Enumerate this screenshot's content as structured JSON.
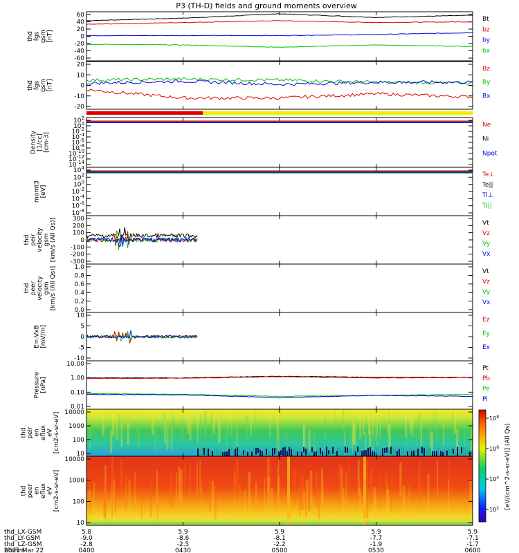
{
  "title": "P3 (TH-D) fields and ground moments overview",
  "date_label": "2021 Mar 22",
  "time_axis": {
    "ticks": [
      "0400",
      "0430",
      "0500",
      "0530",
      "0600"
    ],
    "rows": [
      {
        "label": "thd_LX-GSM",
        "values": [
          "5.8",
          "5.9",
          "5.9",
          "5.9",
          "5.9"
        ]
      },
      {
        "label": "thd_LY-GSM",
        "values": [
          "-9.0",
          "-8.6",
          "-8.1",
          "-7.7",
          "-7.1"
        ]
      },
      {
        "label": "thd_LZ-GSM",
        "values": [
          "-2.8",
          "-2.5",
          "-2.2",
          "-1.9",
          "-1.7"
        ]
      },
      {
        "label": "hhmm",
        "values": []
      }
    ]
  },
  "colorbar_label": "[eV/(cm^2-s-sr-eV)] (All Qs)",
  "colorbar_ticks": [
    "10^8",
    "10^6",
    "10^4",
    "10^2"
  ],
  "chart_data": [
    {
      "type": "line",
      "ylabel": [
        "thd",
        "fgs",
        "gsm",
        "[nT]"
      ],
      "yticks": [
        "60",
        "40",
        "20",
        "0",
        "-20",
        "-40",
        "-60"
      ],
      "ylim": [
        -60,
        65
      ],
      "x": [
        "0400",
        "0430",
        "0500",
        "0530",
        "0600"
      ],
      "series": [
        {
          "name": "Bt",
          "color": "#000000",
          "values": [
            43,
            50,
            62,
            52,
            58
          ]
        },
        {
          "name": "bz",
          "color": "#e00000",
          "values": [
            33,
            38,
            43,
            38,
            40
          ]
        },
        {
          "name": "by",
          "color": "#0000e0",
          "values": [
            2,
            2,
            2,
            5,
            10
          ]
        },
        {
          "name": "bx",
          "color": "#00c000",
          "values": [
            -22,
            -24,
            -30,
            -24,
            -28
          ]
        }
      ]
    },
    {
      "type": "line",
      "ylabel": [
        "thd",
        "fgs",
        "gsm",
        "[nT]"
      ],
      "yticks": [
        "20",
        "10",
        "0",
        "-10",
        "-20"
      ],
      "ylim": [
        -25,
        20
      ],
      "x": [
        "0400",
        "0430",
        "0500",
        "0530",
        "0600"
      ],
      "series": [
        {
          "name": "Bz",
          "color": "#e00000",
          "values": [
            -4,
            -12,
            -12,
            -8,
            -11
          ]
        },
        {
          "name": "By",
          "color": "#00c000",
          "values": [
            5,
            6,
            5,
            3,
            2
          ]
        },
        {
          "name": "Bx",
          "color": "#0000e0",
          "values": [
            2,
            4,
            1,
            3,
            3
          ]
        }
      ]
    },
    {
      "type": "line",
      "ylabel": [
        "Density",
        "[1/cc]",
        "[cm-3]"
      ],
      "yticks": [
        "10^2",
        "10^0",
        "10^-2",
        "10^-4",
        "10^-6",
        "10^-8",
        "10^-10",
        "10^-12",
        "10^-14"
      ],
      "series_labels": [
        {
          "name": "Ne",
          "color": "#e00000"
        },
        {
          "name": "Ni",
          "color": "#000000"
        },
        {
          "name": "Npot",
          "color": "#0000e0"
        }
      ]
    },
    {
      "type": "line",
      "ylabel": [
        "momt3",
        "[eV]"
      ],
      "yticks": [
        "10^4",
        "10^2",
        "10^0",
        "10^-2",
        "10^-4",
        "10^-6",
        "10^-8"
      ],
      "series_labels": [
        {
          "name": "Te⊥",
          "color": "#e00000"
        },
        {
          "name": "Te||",
          "color": "#000000"
        },
        {
          "name": "Ti⊥",
          "color": "#0000e0"
        },
        {
          "name": "Ti||",
          "color": "#00c000"
        }
      ]
    },
    {
      "type": "line",
      "ylabel": [
        "thd",
        "peir",
        "velocity",
        "gsm",
        "[km/s (All Qs)]"
      ],
      "yticks": [
        "300",
        "200",
        "100",
        "0",
        "-100",
        "-200",
        "-300"
      ],
      "series_labels": [
        {
          "name": "Vt",
          "color": "#000000"
        },
        {
          "name": "Vz",
          "color": "#e00000"
        },
        {
          "name": "Vy",
          "color": "#00c000"
        },
        {
          "name": "Vx",
          "color": "#0000e0"
        }
      ]
    },
    {
      "type": "line",
      "ylabel": [
        "thd",
        "peer",
        "velocity",
        "gsm",
        "[km/s (All Qs)]"
      ],
      "yticks": [
        "1.0",
        "0.8",
        "0.6",
        "0.4",
        "0.2",
        "0.0"
      ],
      "series_labels": [
        {
          "name": "Vt",
          "color": "#000000"
        },
        {
          "name": "Vz",
          "color": "#e00000"
        },
        {
          "name": "Vy",
          "color": "#00c000"
        },
        {
          "name": "Vx",
          "color": "#0000e0"
        }
      ]
    },
    {
      "type": "line",
      "ylabel": [
        "E=-VxB",
        "[mV/m]"
      ],
      "yticks": [
        "10",
        "5",
        "0",
        "-5",
        "-10"
      ],
      "series_labels": [
        {
          "name": "Ez",
          "color": "#e00000"
        },
        {
          "name": "Ey",
          "color": "#00c000"
        },
        {
          "name": "Ex",
          "color": "#0000e0"
        }
      ]
    },
    {
      "type": "line",
      "ylabel": [
        "Pressure",
        "[nPa]"
      ],
      "yticks": [
        "10.00",
        "1.00",
        "0.10",
        "0.01"
      ],
      "series": [
        {
          "name": "Pt",
          "color": "#000000",
          "values": [
            1.0,
            1.0,
            1.3,
            1.1,
            1.1
          ]
        },
        {
          "name": "Pb",
          "color": "#e00000",
          "values": [
            0.9,
            0.95,
            1.2,
            1.0,
            1.05
          ]
        },
        {
          "name": "Pe",
          "color": "#00c000",
          "values": [
            0.08,
            0.07,
            0.05,
            0.06,
            0.07
          ]
        },
        {
          "name": "Pi",
          "color": "#0000e0",
          "values": [
            0.07,
            0.065,
            0.04,
            0.06,
            0.05
          ]
        }
      ]
    },
    {
      "type": "heatmap",
      "ylabel": [
        "thd",
        "peir",
        "en",
        "eflux",
        "eV",
        "[cm2-s-sr-eV]"
      ],
      "yticks": [
        "10000",
        "1000",
        "100",
        "10"
      ]
    },
    {
      "type": "heatmap",
      "ylabel": [
        "thd",
        "peer",
        "en",
        "eflux",
        "eV",
        "[cm2-s-sr-eV]"
      ],
      "yticks": [
        "10000",
        "1000",
        "100",
        "10"
      ]
    }
  ]
}
